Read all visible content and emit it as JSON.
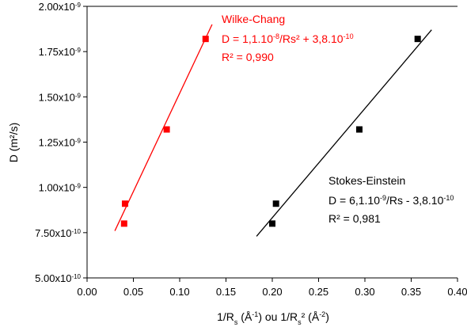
{
  "chart_data": {
    "type": "scatter",
    "xlabel": [
      {
        "text": "1/R"
      },
      {
        "text": "s",
        "shift": "sub"
      },
      {
        "text": " (Å"
      },
      {
        "text": "-1",
        "shift": "sup"
      },
      {
        "text": ") ou 1/R"
      },
      {
        "text": "s",
        "shift": "sub"
      },
      {
        "text": "² (Å"
      },
      {
        "text": "-2",
        "shift": "sup"
      },
      {
        "text": ")"
      }
    ],
    "ylabel": "D (m²/s)",
    "xlim": [
      0,
      0.4
    ],
    "xticks": [
      {
        "value": 0,
        "label": "0.00"
      },
      {
        "value": 0.05,
        "label": "0.05"
      },
      {
        "value": 0.1,
        "label": "0.10"
      },
      {
        "value": 0.15,
        "label": "0.15"
      },
      {
        "value": 0.2,
        "label": "0.20"
      },
      {
        "value": 0.25,
        "label": "0.25"
      },
      {
        "value": 0.3,
        "label": "0.30"
      },
      {
        "value": 0.35,
        "label": "0.35"
      },
      {
        "value": 0.4,
        "label": "0.40"
      }
    ],
    "ylim": [
      5e-10,
      2e-09
    ],
    "yticks": [
      {
        "value": 5e-10,
        "label": "5.00x10",
        "exp": "-10"
      },
      {
        "value": 7.5e-10,
        "label": "7.50x10",
        "exp": "-10"
      },
      {
        "value": 1e-09,
        "label": "1.00x10",
        "exp": "-9"
      },
      {
        "value": 1.25e-09,
        "label": "1.25x10",
        "exp": "-9"
      },
      {
        "value": 1.5e-09,
        "label": "1.50x10",
        "exp": "-9"
      },
      {
        "value": 1.75e-09,
        "label": "1.75x10",
        "exp": "-9"
      },
      {
        "value": 2e-09,
        "label": "2.00x10",
        "exp": "-9"
      }
    ],
    "series": [
      {
        "name": "Wilke-Chang",
        "color": "#ff0000",
        "x": [
          0.04,
          0.041,
          0.086,
          0.128
        ],
        "values": [
          8e-10,
          9.1e-10,
          1.32e-09,
          1.82e-09
        ],
        "fit": {
          "x": [
            0.03,
            0.135
          ],
          "y": [
            7.6e-10,
            1.9e-09
          ]
        },
        "equation": [
          {
            "text": "D = 1,1.10"
          },
          {
            "text": "-8",
            "shift": "sup"
          },
          {
            "text": "/Rs² + 3,8.10"
          },
          {
            "text": "-10",
            "shift": "sup"
          }
        ],
        "r2": "R² = 0,990"
      },
      {
        "name": "Stokes-Einstein",
        "color": "#000000",
        "x": [
          0.2,
          0.204,
          0.294,
          0.357
        ],
        "values": [
          8e-10,
          9.1e-10,
          1.32e-09,
          1.82e-09
        ],
        "fit": {
          "x": [
            0.183,
            0.372
          ],
          "y": [
            7.3e-10,
            1.87e-09
          ]
        },
        "equation": [
          {
            "text": "D = 6,1.10"
          },
          {
            "text": "-9",
            "shift": "sup"
          },
          {
            "text": "/Rs - 3,8.10"
          },
          {
            "text": "-10",
            "shift": "sup"
          }
        ],
        "r2": "R² = 0,981"
      }
    ]
  }
}
